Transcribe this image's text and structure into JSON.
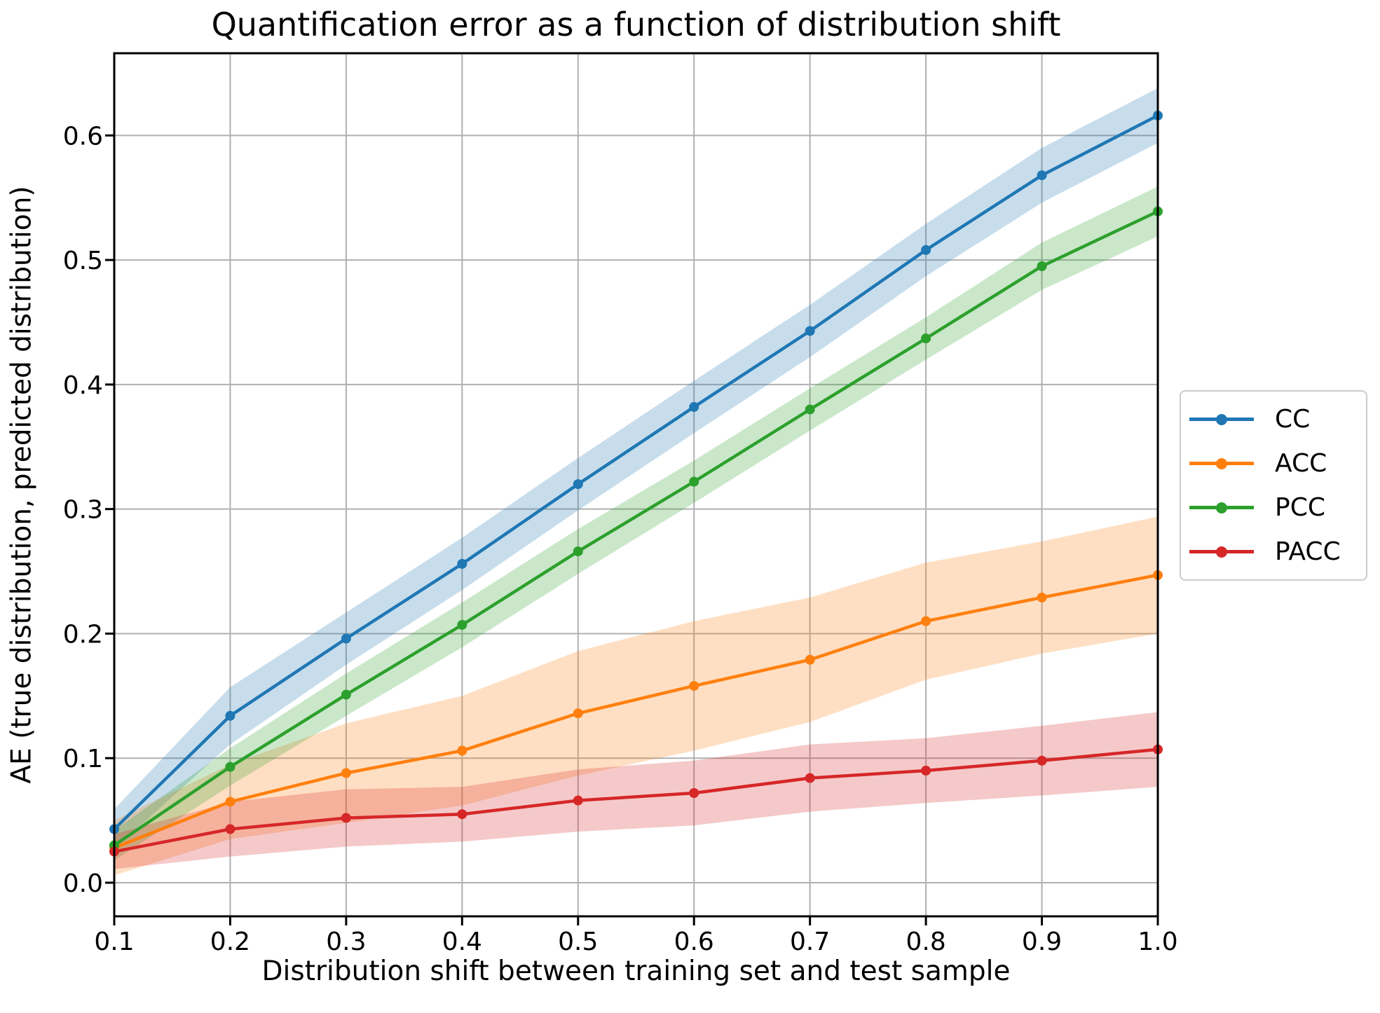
{
  "chart_data": {
    "type": "line",
    "title": "Quantification error as a function of distribution shift",
    "xlabel": "Distribution shift between training set and test sample",
    "ylabel": "AE (true distribution, predicted distribution)",
    "x": [
      0.1,
      0.2,
      0.3,
      0.4,
      0.5,
      0.6,
      0.7,
      0.8,
      0.9,
      1.0
    ],
    "xlim": [
      0.1,
      1.0
    ],
    "ylim": [
      -0.027,
      0.666
    ],
    "xticks": {
      "values": [
        0.1,
        0.2,
        0.3,
        0.4,
        0.5,
        0.6,
        0.7,
        0.8,
        0.9,
        1.0
      ],
      "labels": [
        "0.1",
        "0.2",
        "0.3",
        "0.4",
        "0.5",
        "0.6",
        "0.7",
        "0.8",
        "0.9",
        "1.0"
      ]
    },
    "yticks": {
      "values": [
        0.0,
        0.1,
        0.2,
        0.3,
        0.4,
        0.5,
        0.6
      ],
      "labels": [
        "0.0",
        "0.1",
        "0.2",
        "0.3",
        "0.4",
        "0.5",
        "0.6"
      ]
    },
    "grid": true,
    "grid_color": "#b0b0b0",
    "band_alpha": 0.25,
    "legend_position": "outside right, vertically centered",
    "series": [
      {
        "name": "CC",
        "color": "#1f77b4",
        "marker": "circle",
        "values": [
          0.043,
          0.134,
          0.196,
          0.256,
          0.32,
          0.382,
          0.443,
          0.508,
          0.568,
          0.616
        ],
        "band_halfwidth": [
          0.016,
          0.023,
          0.021,
          0.021,
          0.021,
          0.021,
          0.021,
          0.021,
          0.022,
          0.022
        ]
      },
      {
        "name": "ACC",
        "color": "#ff7f0e",
        "marker": "circle",
        "values": [
          0.028,
          0.065,
          0.088,
          0.106,
          0.136,
          0.158,
          0.179,
          0.21,
          0.229,
          0.247
        ],
        "band_halfwidth": [
          0.022,
          0.03,
          0.04,
          0.044,
          0.05,
          0.052,
          0.05,
          0.047,
          0.045,
          0.047
        ]
      },
      {
        "name": "PCC",
        "color": "#2ca02c",
        "marker": "circle",
        "values": [
          0.03,
          0.093,
          0.151,
          0.207,
          0.266,
          0.322,
          0.38,
          0.437,
          0.495,
          0.539
        ],
        "band_halfwidth": [
          0.012,
          0.015,
          0.017,
          0.018,
          0.018,
          0.017,
          0.017,
          0.017,
          0.019,
          0.02
        ]
      },
      {
        "name": "PACC",
        "color": "#d62728",
        "marker": "circle",
        "values": [
          0.025,
          0.043,
          0.052,
          0.055,
          0.066,
          0.072,
          0.084,
          0.09,
          0.098,
          0.107
        ],
        "band_halfwidth": [
          0.014,
          0.022,
          0.023,
          0.022,
          0.025,
          0.026,
          0.027,
          0.026,
          0.028,
          0.03
        ]
      }
    ]
  }
}
